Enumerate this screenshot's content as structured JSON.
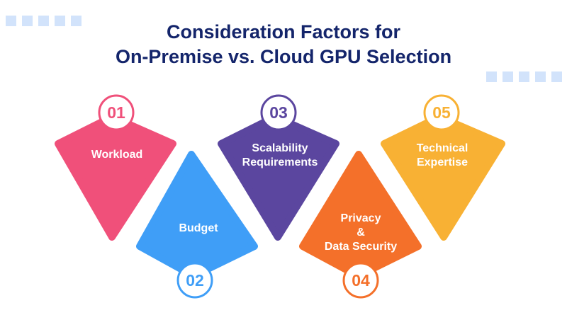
{
  "title": {
    "line1": "Consideration Factors for",
    "line2": "On-Premise vs. Cloud GPU Selection"
  },
  "factors": [
    {
      "number": "01",
      "lines": [
        "Workload"
      ],
      "color": "#f0507a"
    },
    {
      "number": "02",
      "lines": [
        "Budget"
      ],
      "color": "#3f9ef7"
    },
    {
      "number": "03",
      "lines": [
        "Scalability",
        "Requirements"
      ],
      "color": "#5b469f"
    },
    {
      "number": "04",
      "lines": [
        "Privacy",
        "&",
        "Data Security"
      ],
      "color": "#f4702a"
    },
    {
      "number": "05",
      "lines": [
        "Technical",
        "Expertise"
      ],
      "color": "#f8b134"
    }
  ],
  "colors": {
    "title": "#14256b",
    "decor_dots": "#d2e3fb"
  }
}
